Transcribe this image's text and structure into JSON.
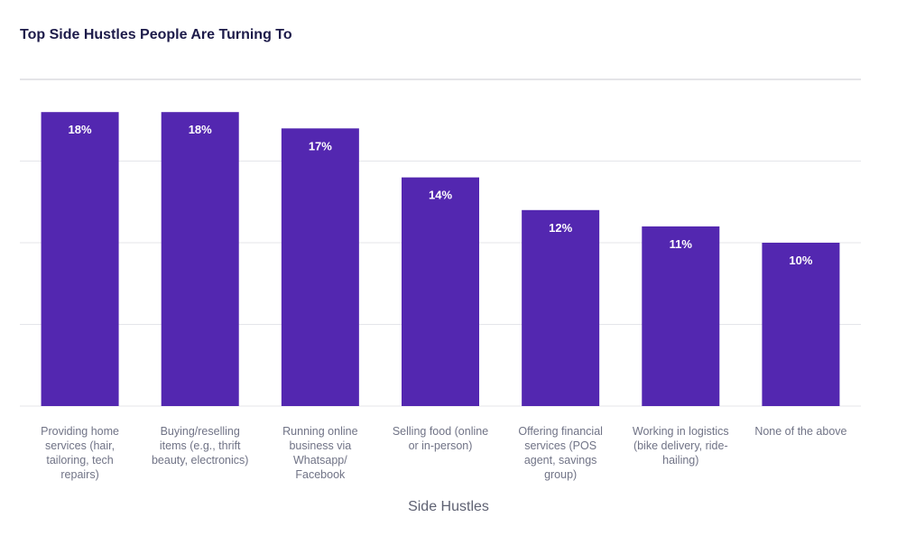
{
  "chart_data": {
    "type": "bar",
    "title": "Top Side Hustles People Are Turning To",
    "xlabel": "Side Hustles",
    "ylabel": "",
    "ylim": [
      0,
      20
    ],
    "grid": true,
    "bar_color": "#5327b0",
    "categories": [
      "Providing home services (hair, tailoring, tech repairs)",
      "Buying/reselling items (e.g., thrift beauty, electronics)",
      "Running online business via Whatsapp/ Facebook",
      "Selling food (online or in-person)",
      "Offering financial services (POS agent, savings group)",
      "Working in logistics (bike delivery, ride-hailing)",
      "None of the above"
    ],
    "values": [
      18,
      18,
      17,
      14,
      12,
      11,
      10
    ],
    "data_labels": [
      "18%",
      "18%",
      "17%",
      "14%",
      "12%",
      "11%",
      "10%"
    ]
  }
}
